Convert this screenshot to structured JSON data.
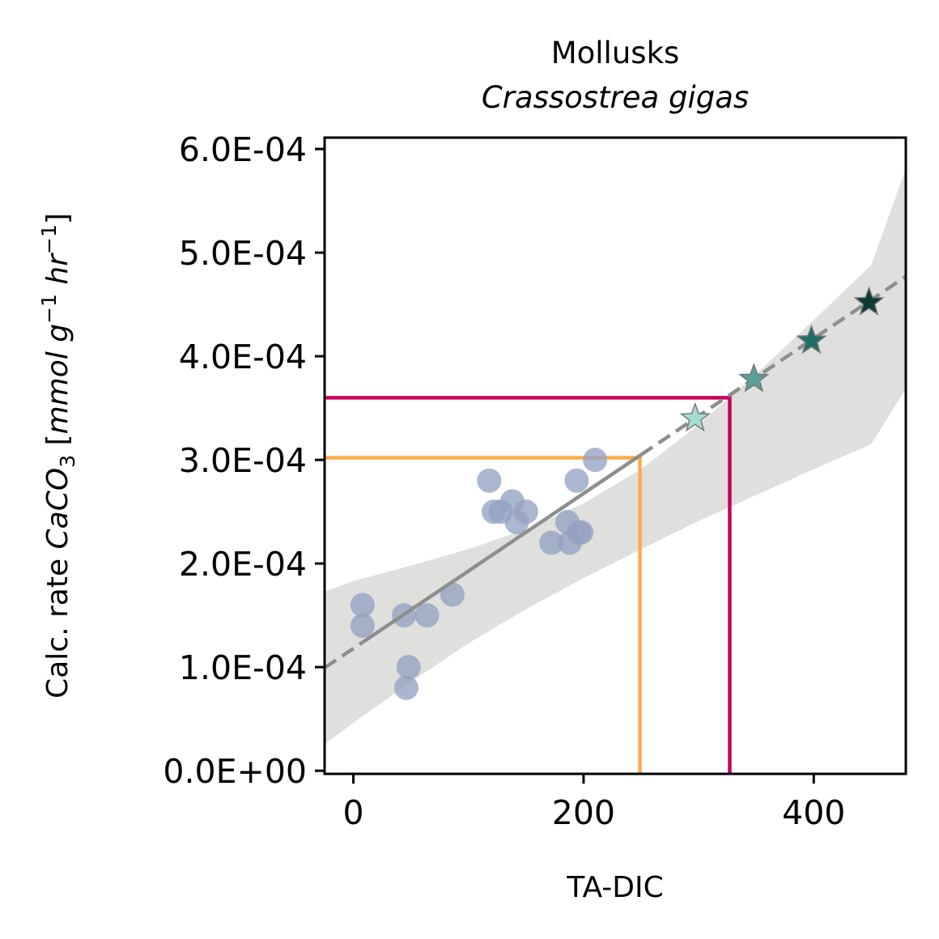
{
  "chart_data": {
    "type": "scatter",
    "title": "Mollusks",
    "subtitle": "Crassostrea gigas",
    "xlabel": "TA-DIC",
    "ylabel": {
      "prefix": "Calc. rate ",
      "species": "CaCO",
      "species_sub": "3",
      "units_open": " [",
      "unit1": "mmol g",
      "unit1_sup": "−1",
      "unit2": " hr",
      "unit2_sup": "−1",
      "units_close": "]"
    },
    "xlim": [
      -25,
      480
    ],
    "ylim": [
      -3e-06,
      0.000611
    ],
    "x_ticks": [
      0,
      200,
      400
    ],
    "x_tick_labels": [
      "0",
      "200",
      "400"
    ],
    "y_ticks": [
      0,
      0.0001,
      0.0002,
      0.0003,
      0.0004,
      0.0005,
      0.0006
    ],
    "y_tick_labels": [
      "0.0E+00",
      "1.0E-04",
      "2.0E-04",
      "3.0E-04",
      "4.0E-04",
      "5.0E-04",
      "6.0E-04"
    ],
    "grid": false,
    "observations": {
      "color": "#93a2c2",
      "points": [
        [
          8,
          0.00016
        ],
        [
          8,
          0.00014
        ],
        [
          44,
          0.00015
        ],
        [
          48,
          0.0001
        ],
        [
          46,
          8e-05
        ],
        [
          64,
          0.00015
        ],
        [
          86,
          0.00017
        ],
        [
          118,
          0.00028
        ],
        [
          122,
          0.00025
        ],
        [
          128,
          0.00025
        ],
        [
          138,
          0.00026
        ],
        [
          142,
          0.00024
        ],
        [
          150,
          0.00025
        ],
        [
          172,
          0.00022
        ],
        [
          186,
          0.00024
        ],
        [
          188,
          0.00022
        ],
        [
          194,
          0.00028
        ],
        [
          196,
          0.00023
        ],
        [
          198,
          0.00023
        ],
        [
          210,
          0.0003
        ]
      ]
    },
    "fit_line": {
      "color": "#8e8e8e",
      "x": [
        -25,
        480
      ],
      "y": [
        9.93e-05,
        0.000477
      ],
      "solid_until_x": 250
    },
    "confidence_band": {
      "color": "#dfdfde",
      "x": [
        -25,
        0,
        50,
        100,
        150,
        200,
        250,
        300,
        350,
        400,
        450,
        480
      ],
      "lower": [
        2.55e-05,
        4.64e-05,
        8.57e-05,
        0.000123,
        0.000156,
        0.000186,
        0.000214,
        0.000241,
        0.000266,
        0.000291,
        0.000315,
        0.000369
      ],
      "upper": [
        0.000173,
        0.000183,
        0.000198,
        0.000214,
        0.000233,
        0.000258,
        0.000291,
        0.000334,
        0.000383,
        0.000435,
        0.000488,
        0.000581
      ]
    },
    "projections": [
      {
        "x": 297,
        "y": 0.00034,
        "color": "#a5dcd4"
      },
      {
        "x": 348,
        "y": 0.000378,
        "color": "#5a9e98"
      },
      {
        "x": 398,
        "y": 0.000415,
        "color": "#1e6f6c"
      },
      {
        "x": 448,
        "y": 0.000452,
        "color": "#0c3b38"
      }
    ],
    "reference_lines": [
      {
        "x": 249,
        "y": 0.000302,
        "color": "#ffab4a"
      },
      {
        "x": 327,
        "y": 0.00036,
        "color": "#c8005e"
      }
    ]
  }
}
